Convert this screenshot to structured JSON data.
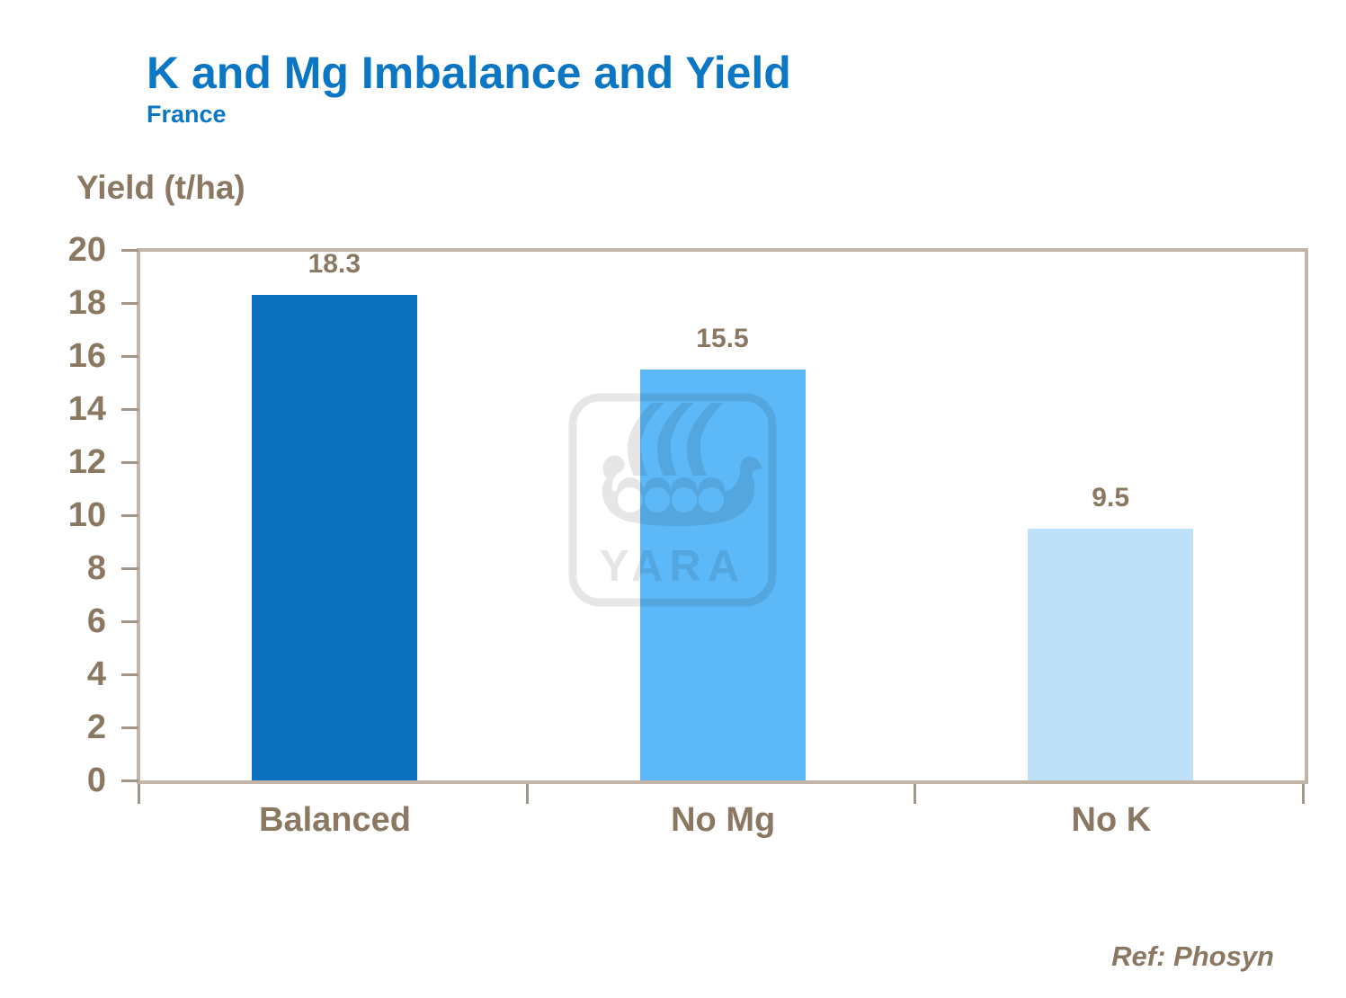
{
  "header": {
    "title": "K and Mg Imbalance and Yield",
    "subtitle": "France"
  },
  "chart_data": {
    "type": "bar",
    "title": "K and Mg Imbalance and Yield",
    "subtitle": "France",
    "ylabel": "Yield (t/ha)",
    "xlabel": "",
    "categories": [
      "Balanced",
      "No Mg",
      "No K"
    ],
    "values": [
      18.3,
      15.5,
      9.5
    ],
    "value_labels": [
      "18.3",
      "15.5",
      "9.5"
    ],
    "bar_colors": [
      "#0a70bd",
      "#5cb8f7",
      "#bfe0f9"
    ],
    "ylim": [
      0,
      20
    ],
    "yticks": [
      0,
      2,
      4,
      6,
      8,
      10,
      12,
      14,
      16,
      18,
      20
    ],
    "grid": false,
    "legend": false
  },
  "colors": {
    "title_blue": "#0b77c4",
    "text_brown": "#8a7862",
    "axis_tan": "#c2b5a7",
    "tick_gray": "#a2968a"
  },
  "watermark": {
    "text": "YARA"
  },
  "footer": {
    "reference": "Ref: Phosyn"
  }
}
